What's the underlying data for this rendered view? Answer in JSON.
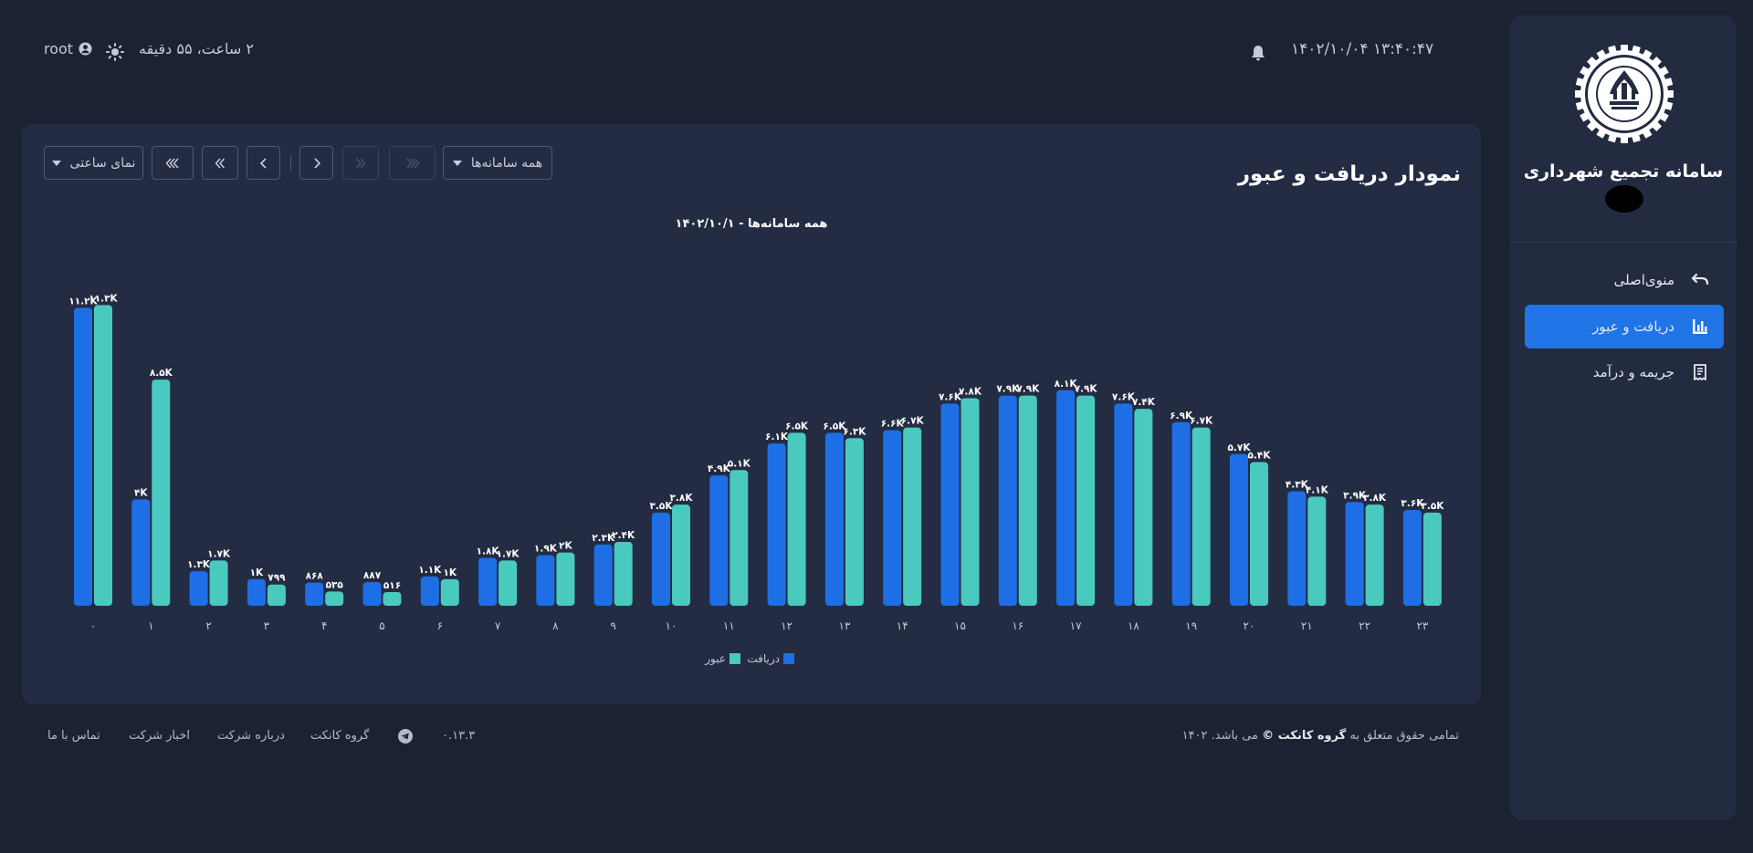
{
  "sidebar": {
    "app_title": "سامانه تجمیع شهرداری",
    "nav": [
      {
        "label": "منوی‌اصلی",
        "icon": "undo-icon"
      },
      {
        "label": "دریافت و عبور",
        "icon": "bar-chart-icon",
        "active": true
      },
      {
        "label": "جریمه و درآمد",
        "icon": "receipt-icon"
      }
    ]
  },
  "header": {
    "datetime": "۱۴۰۲/۱۰/۰۴  ۱۳:۴۰:۴۷",
    "duration": "۲ ساعت، ۵۵ دقیقه",
    "user": "root"
  },
  "toolbar": {
    "view_label": "نمای ساعتی",
    "systems_label": "همه سامانه‌ها"
  },
  "footer": {
    "copyright_pre": "تمامی حقوق متعلق به",
    "copyright_brand": "گروه کانکت ©",
    "copyright_post": "می باشد. ۱۴۰۲",
    "version": "۰.۱۳.۳",
    "links": [
      "گروه کانکت",
      "درباره شرکت",
      "اخبار شرکت",
      "تماس با ما"
    ]
  },
  "colors": {
    "receive": "#1e6fe6",
    "pass": "#4ac9bf"
  },
  "chart_data": {
    "type": "bar",
    "title": "نمودار دریافت و عبور",
    "subtitle": "همه سامانه‌ها - ۱۴۰۲/۱۰/۱",
    "categories": [
      "۰",
      "۱",
      "۲",
      "۳",
      "۴",
      "۵",
      "۶",
      "۷",
      "۸",
      "۹",
      "۱۰",
      "۱۱",
      "۱۲",
      "۱۳",
      "۱۴",
      "۱۵",
      "۱۶",
      "۱۷",
      "۱۸",
      "۱۹",
      "۲۰",
      "۲۱",
      "۲۲",
      "۲۳"
    ],
    "series": [
      {
        "name": "دریافت",
        "values": [
          11200,
          4000,
          1300,
          1000,
          868,
          887,
          1100,
          1800,
          1900,
          2300,
          3500,
          4900,
          6100,
          6500,
          6600,
          7600,
          7900,
          8100,
          7600,
          6900,
          5700,
          4300,
          3900,
          3600
        ],
        "labels": [
          "۱۱.۲K",
          "۴K",
          "۱.۳K",
          "۱K",
          "۸۶۸",
          "۸۸۷",
          "۱.۱K",
          "۱.۸K",
          "۱.۹K",
          "۲.۳K",
          "۳.۵K",
          "۴.۹K",
          "۶.۱K",
          "۶.۵K",
          "۶.۶K",
          "۷.۶K",
          "۷.۹K",
          "۸.۱K",
          "۷.۶K",
          "۶.۹K",
          "۵.۷K",
          "۴.۳K",
          "۳.۹K",
          "۳.۶K"
        ]
      },
      {
        "name": "عبور",
        "values": [
          11300,
          8500,
          1700,
          799,
          535,
          516,
          1000,
          1700,
          2000,
          2400,
          3800,
          5100,
          6500,
          6300,
          6700,
          7800,
          7900,
          7900,
          7400,
          6700,
          5400,
          4100,
          3800,
          3500
        ],
        "labels": [
          "۱۱.۳K",
          "۸.۵K",
          "۱.۷K",
          "۷۹۹",
          "۵۳۵",
          "۵۱۶",
          "۱K",
          "۱.۷K",
          "۲K",
          "۲.۴K",
          "۳.۸K",
          "۵.۱K",
          "۶.۵K",
          "۶.۳K",
          "۶.۷K",
          "۷.۸K",
          "۷.۹K",
          "۷.۹K",
          "۷.۴K",
          "۶.۷K",
          "۵.۴K",
          "۴.۱K",
          "۳.۸K",
          "۳.۵K"
        ]
      }
    ],
    "ylim": [
      0,
      12000
    ],
    "grid": false,
    "legend": "bottom-center"
  }
}
